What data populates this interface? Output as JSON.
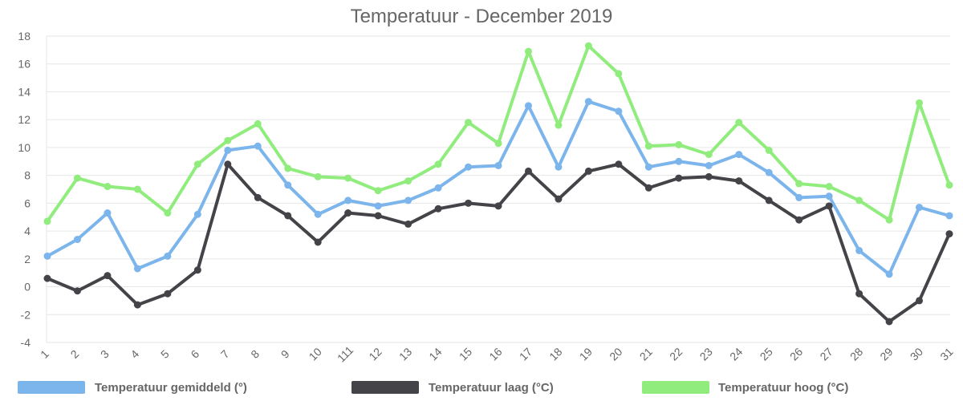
{
  "chart_data": {
    "type": "line",
    "title": "Temperatuur - December 2019",
    "categories": [
      "1",
      "2",
      "3",
      "4",
      "5",
      "6",
      "7",
      "8",
      "9",
      "10",
      "111",
      "12",
      "13",
      "14",
      "15",
      "16",
      "17",
      "18",
      "19",
      "20",
      "21",
      "22",
      "23",
      "24",
      "25",
      "26",
      "27",
      "28",
      "29",
      "30",
      "31"
    ],
    "ylim": [
      -4,
      18
    ],
    "yticks": [
      -4,
      -2,
      0,
      2,
      4,
      6,
      8,
      10,
      12,
      14,
      16,
      18
    ],
    "grid": true,
    "legend_position": "bottom",
    "series": [
      {
        "name": "Temperatuur gemiddeld (°)",
        "color": "#7cb5ec",
        "values": [
          2.2,
          3.4,
          5.3,
          1.3,
          2.2,
          5.2,
          9.8,
          10.1,
          7.3,
          5.2,
          6.2,
          5.8,
          6.2,
          7.1,
          8.6,
          8.7,
          13.0,
          8.6,
          13.3,
          12.6,
          8.6,
          9.0,
          8.7,
          9.5,
          8.2,
          6.4,
          6.5,
          2.6,
          0.9,
          5.7,
          5.1
        ]
      },
      {
        "name": "Temperatuur laag (°C)",
        "color": "#434348",
        "values": [
          0.6,
          -0.3,
          0.8,
          -1.3,
          -0.5,
          1.2,
          8.8,
          6.4,
          5.1,
          3.2,
          5.3,
          5.1,
          4.5,
          5.6,
          6.0,
          5.8,
          8.3,
          6.3,
          8.3,
          8.8,
          7.1,
          7.8,
          7.9,
          7.6,
          6.2,
          4.8,
          5.8,
          -0.5,
          -2.5,
          -1.0,
          3.8
        ]
      },
      {
        "name": "Temperatuur hoog (°C)",
        "color": "#90ed7d",
        "values": [
          4.7,
          7.8,
          7.2,
          7.0,
          5.3,
          8.8,
          10.5,
          11.7,
          8.5,
          7.9,
          7.8,
          6.9,
          7.6,
          8.8,
          11.8,
          10.3,
          16.9,
          11.6,
          17.3,
          15.3,
          10.1,
          10.2,
          9.5,
          11.8,
          9.8,
          7.4,
          7.2,
          6.2,
          4.8,
          13.2,
          7.3
        ]
      }
    ]
  }
}
